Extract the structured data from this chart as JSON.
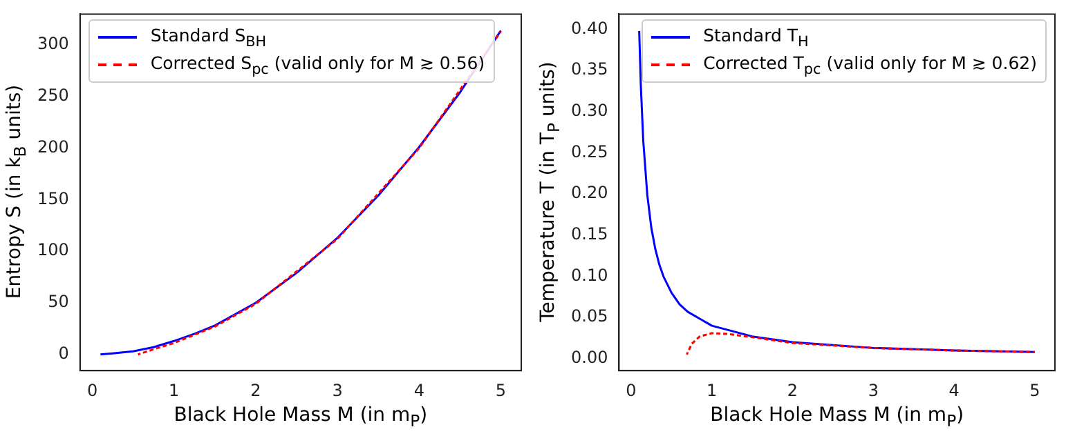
{
  "chart_data": [
    {
      "type": "line",
      "xlabel": "Black Hole Mass M (in m$_{P}$)",
      "ylabel": "Entropy S (in k$_{B}$ units)",
      "xlim": [
        -0.15,
        5.25
      ],
      "xticks": [
        0,
        1,
        2,
        3,
        4,
        5
      ],
      "ylim": [
        -15.7,
        330
      ],
      "yticks": [
        0,
        50,
        100,
        150,
        200,
        250,
        300
      ],
      "grid": false,
      "legend": "top left",
      "series": [
        {
          "name": "Standard S$_{BH}$",
          "color": "#0000ff",
          "line_style": "solid",
          "x": [
            0.1,
            0.25,
            0.5,
            0.75,
            1,
            1.25,
            1.5,
            2,
            2.5,
            3,
            3.5,
            4,
            4.5,
            5
          ],
          "values": [
            0,
            1,
            3,
            7,
            13,
            20,
            28,
            50,
            79,
            113,
            154,
            201,
            254,
            314
          ]
        },
        {
          "name": "Corrected S$_{pc}$ (valid only for M ≳ 0.56)",
          "color": "#ff0000",
          "line_style": "dashed",
          "x": [
            0.56,
            0.75,
            1,
            1.5,
            2,
            3,
            4,
            5
          ],
          "values": [
            0,
            5,
            11,
            27,
            49,
            112,
            200,
            313
          ]
        }
      ]
    },
    {
      "type": "line",
      "xlabel": "Black Hole Mass M (in m$_{P}$)",
      "ylabel": "Temperature T (in T$_{P}$ units)",
      "xlim": [
        -0.15,
        5.25
      ],
      "xticks": [
        0,
        1,
        2,
        3,
        4,
        5
      ],
      "ylim": [
        -0.0145,
        0.4185
      ],
      "yticks": [
        {
          "value": 0,
          "label": "0.00"
        },
        {
          "value": 0.05,
          "label": "0.05"
        },
        {
          "value": 0.1,
          "label": "0.10"
        },
        {
          "value": 0.15,
          "label": "0.15"
        },
        {
          "value": 0.2,
          "label": "0.20"
        },
        {
          "value": 0.25,
          "label": "0.25"
        },
        {
          "value": 0.3,
          "label": "0.30"
        },
        {
          "value": 0.35,
          "label": "0.35"
        },
        {
          "value": 0.4,
          "label": "0.40"
        }
      ],
      "grid": false,
      "legend": "top right",
      "series": [
        {
          "name": "Standard T$_{H}$",
          "color": "#0000ff",
          "line_style": "solid",
          "x": [
            0.1,
            0.12,
            0.15,
            0.2,
            0.25,
            0.3,
            0.35,
            0.4,
            0.5,
            0.6,
            0.7,
            1,
            1.5,
            2,
            3,
            4,
            5
          ],
          "values": [
            0.398,
            0.332,
            0.265,
            0.199,
            0.159,
            0.133,
            0.114,
            0.1,
            0.08,
            0.066,
            0.057,
            0.04,
            0.027,
            0.02,
            0.013,
            0.01,
            0.008
          ]
        },
        {
          "name": "Corrected T$_{pc}$ (valid only for M ≳ 0.62)",
          "color": "#ff0000",
          "line_style": "dashed",
          "x": [
            0.69,
            0.75,
            0.85,
            1,
            1.2,
            1.5,
            2,
            3,
            4,
            5
          ],
          "values": [
            0.005,
            0.018,
            0.027,
            0.031,
            0.03,
            0.026,
            0.019,
            0.013,
            0.01,
            0.008
          ]
        }
      ]
    }
  ]
}
